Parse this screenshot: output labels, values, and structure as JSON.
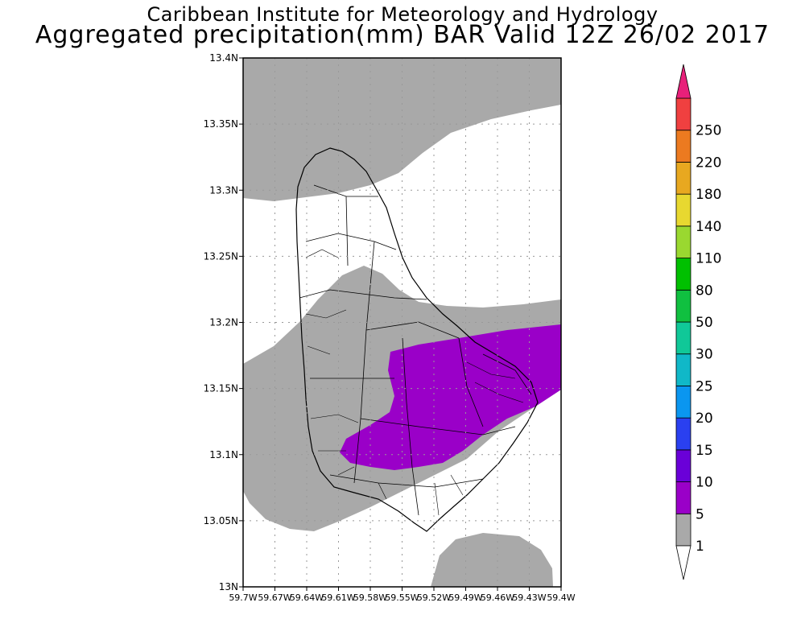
{
  "header": {
    "title_line1": "Caribbean Institute for Meteorology and Hydrology",
    "title_line2": "Aggregated precipitation(mm) BAR Valid 12Z 26/02 2017"
  },
  "map": {
    "y_ticks": [
      "13N",
      "13.05N",
      "13.1N",
      "13.15N",
      "13.2N",
      "13.25N",
      "13.3N",
      "13.35N",
      "13.4N"
    ],
    "x_ticks": [
      "59.7W",
      "59.67W",
      "59.64W",
      "59.61W",
      "59.58W",
      "59.55W",
      "59.52W",
      "59.49W",
      "59.46W",
      "59.43W",
      "59.4W"
    ],
    "lat_range": [
      13.0,
      13.4
    ],
    "lon_range": [
      -59.7,
      -59.4
    ],
    "grid": "dotted"
  },
  "colorbar": {
    "levels": [
      "1",
      "5",
      "10",
      "15",
      "20",
      "25",
      "30",
      "50",
      "80",
      "110",
      "140",
      "180",
      "220",
      "250"
    ],
    "colors": [
      "#a9a9a9",
      "#9a00c8",
      "#6a00d8",
      "#2a40f0",
      "#0a96f0",
      "#10b8c8",
      "#10c898",
      "#10c040",
      "#00c000",
      "#9ad830",
      "#e8d830",
      "#e8a820",
      "#ec7a20",
      "#f04040"
    ],
    "below_color": "#ffffff",
    "above_color": "#e8207a"
  },
  "legend_colors": {
    "gray_class": "#a9a9a9",
    "purple_class": "#9a00c8"
  }
}
